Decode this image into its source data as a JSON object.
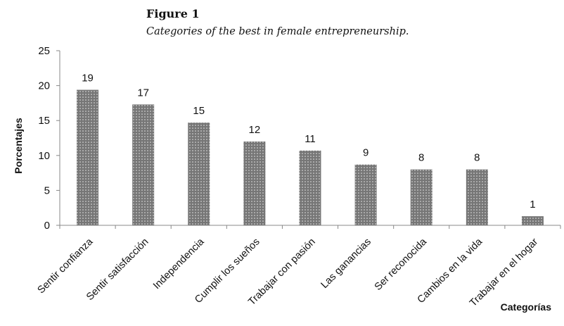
{
  "figure": {
    "label": "Figure 1",
    "caption": "Categories of the best in female entrepreneurship."
  },
  "chart_data": {
    "type": "bar",
    "categories": [
      "Sentir confianza",
      "Sentir satisfacción",
      "Independencia",
      "Cumplir los sueños",
      "Trabajar con pasión",
      "Las ganancias",
      "Ser reconocida",
      "Cambios en la vida",
      "Trabajar en el hogar"
    ],
    "values": [
      19.4,
      17.3,
      14.7,
      12.0,
      10.7,
      8.7,
      8.0,
      8.0,
      1.3
    ],
    "data_labels": [
      "19",
      "17",
      "15",
      "12",
      "11",
      "9",
      "8",
      "8",
      "1"
    ],
    "xlabel": "Categorías",
    "ylabel": "Porcentajes",
    "ylim": [
      0,
      25
    ],
    "yticks": [
      0,
      5,
      10,
      15,
      20,
      25
    ],
    "grid": false,
    "bar_color": "#7a7a7a",
    "bar_pattern": "white dots"
  }
}
